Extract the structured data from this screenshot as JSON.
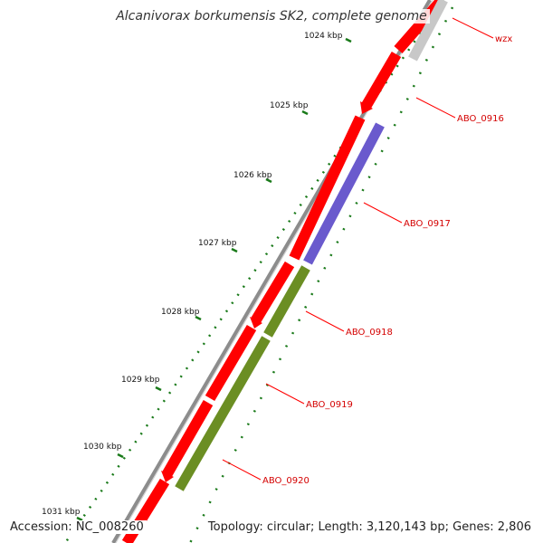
{
  "title": "Alcanivorax borkumensis SK2, complete genome",
  "footer": {
    "accession": "Accession: NC_008260",
    "summary": "Topology: circular; Length: 3,120,143 bp; Genes: 2,806"
  },
  "colors": {
    "backbone": "#8c8c8c",
    "cds_forward": "#ff0000",
    "cds_reverse_grey": "#c8c8c8",
    "cds_reverse_purple": "#6a5acd",
    "cds_reverse_olive": "#6b8e23",
    "ticks": "#1a7a1a",
    "label": "#d40000"
  },
  "ticks": [
    {
      "label": "1024 kbp"
    },
    {
      "label": "1025 kbp"
    },
    {
      "label": "1026 kbp"
    },
    {
      "label": "1027 kbp"
    },
    {
      "label": "1028 kbp"
    },
    {
      "label": "1029 kbp"
    },
    {
      "label": "1030 kbp"
    },
    {
      "label": "1031 kbp"
    }
  ],
  "genes": [
    {
      "name": "wzx"
    },
    {
      "name": "ABO_0916"
    },
    {
      "name": "ABO_0917"
    },
    {
      "name": "ABO_0918"
    },
    {
      "name": "ABO_0919"
    },
    {
      "name": "ABO_0920"
    }
  ]
}
